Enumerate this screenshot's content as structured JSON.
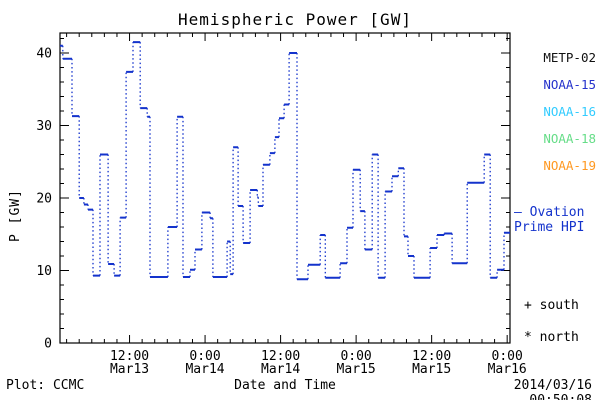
{
  "title": "Hemispheric Power [GW]",
  "colors": {
    "line": "#1433cc",
    "axis": "#000000",
    "background": "#ffffff"
  },
  "y_axis": {
    "label": "P [GW]",
    "ticks": [
      {
        "v": 0,
        "label": "0"
      },
      {
        "v": 10,
        "label": "10"
      },
      {
        "v": 20,
        "label": "20"
      },
      {
        "v": 30,
        "label": "30"
      },
      {
        "v": 40,
        "label": "40"
      }
    ],
    "minor_step": 2
  },
  "x_axis": {
    "label": "Date and Time",
    "ticks": [
      {
        "t": 12,
        "time": "12:00",
        "date": "Mar13"
      },
      {
        "t": 24,
        "time": "0:00",
        "date": "Mar14"
      },
      {
        "t": 36,
        "time": "12:00",
        "date": "Mar14"
      },
      {
        "t": 48,
        "time": "0:00",
        "date": "Mar15"
      },
      {
        "t": 60,
        "time": "12:00",
        "date": "Mar15"
      },
      {
        "t": 72,
        "time": "0:00",
        "date": "Mar16"
      }
    ],
    "minor_step": 2
  },
  "legend": {
    "satellites": [
      {
        "label": "METP-02",
        "color": "#111111"
      },
      {
        "label": "NOAA-15",
        "color": "#2633cc"
      },
      {
        "label": "NOAA-16",
        "color": "#33ccff"
      },
      {
        "label": "NOAA-18",
        "color": "#66dd88"
      },
      {
        "label": "NOAA-19",
        "color": "#ff9922"
      }
    ],
    "ovation": {
      "sample": "—",
      "line1": " Ovation",
      "line2": "Prime HPI",
      "color": "#1433cc"
    },
    "markers": [
      {
        "symbol": "+",
        "label": " south"
      },
      {
        "symbol": "*",
        "label": " north"
      }
    ]
  },
  "footer": {
    "left": "Plot: CCMC",
    "right": "2014/03/16 00:50:08"
  },
  "chart_data": {
    "type": "line",
    "style": "steps-post",
    "title": "Hemispheric Power [GW]",
    "xlabel": "Date and Time",
    "ylabel": "P [GW]",
    "x_unit": "hours since 2014-03-13 00:00 UT",
    "x_range": [
      0.95,
      72.45
    ],
    "ylim": [
      0,
      42.76
    ],
    "grid": false,
    "legend_position": "right-outside",
    "series": [
      {
        "name": "Ovation Prime HPI",
        "color": "#1433cc",
        "points": [
          [
            0.95,
            41.0
          ],
          [
            1.4,
            39.2
          ],
          [
            2.85,
            31.3
          ],
          [
            4.0,
            20.0
          ],
          [
            4.75,
            19.1
          ],
          [
            5.4,
            18.4
          ],
          [
            6.2,
            9.3
          ],
          [
            7.3,
            26.0
          ],
          [
            8.6,
            10.9
          ],
          [
            9.55,
            9.3
          ],
          [
            10.5,
            17.3
          ],
          [
            11.45,
            37.4
          ],
          [
            12.55,
            41.5
          ],
          [
            13.7,
            32.4
          ],
          [
            14.8,
            31.2
          ],
          [
            15.25,
            9.1
          ],
          [
            18.1,
            16.0
          ],
          [
            19.55,
            31.2
          ],
          [
            20.5,
            9.1
          ],
          [
            21.6,
            10.1
          ],
          [
            22.4,
            12.9
          ],
          [
            23.5,
            18.0
          ],
          [
            24.8,
            17.2
          ],
          [
            25.25,
            9.1
          ],
          [
            27.5,
            14.0
          ],
          [
            28.0,
            9.5
          ],
          [
            28.45,
            27.0
          ],
          [
            29.25,
            18.9
          ],
          [
            30.05,
            13.8
          ],
          [
            31.15,
            21.1
          ],
          [
            32.3,
            20.1
          ],
          [
            32.45,
            18.9
          ],
          [
            33.2,
            24.6
          ],
          [
            34.3,
            26.2
          ],
          [
            35.1,
            28.4
          ],
          [
            35.75,
            31.0
          ],
          [
            36.55,
            32.9
          ],
          [
            37.35,
            40.0
          ],
          [
            38.6,
            8.8
          ],
          [
            40.35,
            10.8
          ],
          [
            42.3,
            14.9
          ],
          [
            43.1,
            9.0
          ],
          [
            45.45,
            11.0
          ],
          [
            46.55,
            15.9
          ],
          [
            47.5,
            23.9
          ],
          [
            48.65,
            18.2
          ],
          [
            49.4,
            12.9
          ],
          [
            50.55,
            26.0
          ],
          [
            51.5,
            9.0
          ],
          [
            52.6,
            20.9
          ],
          [
            53.7,
            23.0
          ],
          [
            54.7,
            24.1
          ],
          [
            55.6,
            14.7
          ],
          [
            56.25,
            12.0
          ],
          [
            57.2,
            9.0
          ],
          [
            59.75,
            13.1
          ],
          [
            60.85,
            14.9
          ],
          [
            62.0,
            15.1
          ],
          [
            63.25,
            11.0
          ],
          [
            65.65,
            22.1
          ],
          [
            68.35,
            26.0
          ],
          [
            69.3,
            9.0
          ],
          [
            70.4,
            10.1
          ],
          [
            71.5,
            15.2
          ]
        ],
        "t_end": 72.45
      }
    ]
  }
}
